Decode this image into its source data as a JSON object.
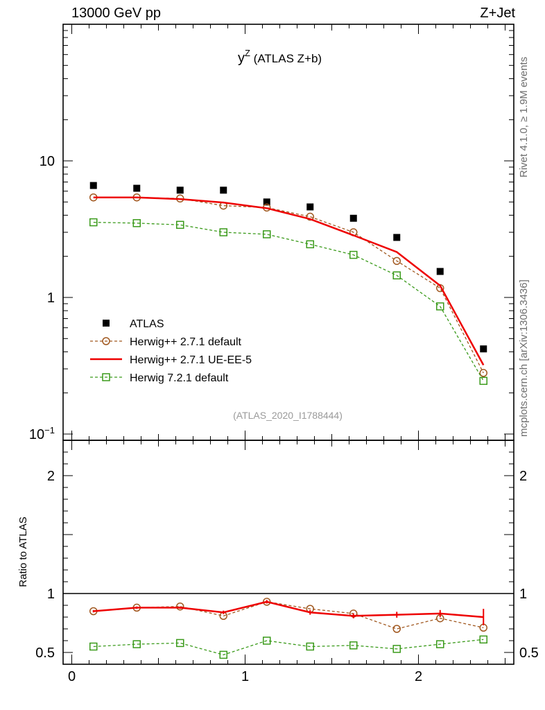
{
  "header": {
    "left": "13000 GeV pp",
    "right": "Z+Jet"
  },
  "side_labels": {
    "rivet": "Rivet 4.1.0, ≥ 1.9M events",
    "mcplots": "mcplots.cern.ch [arXiv:1306.3436]"
  },
  "colors": {
    "atlas": "#000000",
    "herwigpp_default": "#a0571e",
    "herwigpp_ueee5": "#ee0000",
    "herwig7": "#3a9a1a"
  },
  "chart_data": [
    {
      "type": "scatter",
      "title_main": "y",
      "title_sup": "Z",
      "title_sub": " (ATLAS Z+b)",
      "watermark": "(ATLAS_2020_I1788444)",
      "yscale": "log",
      "ylim": [
        0.09,
        100
      ],
      "xlim": [
        -0.05,
        2.55
      ],
      "y_tick_labels": [
        {
          "value": 10,
          "label": "10"
        },
        {
          "value": 1,
          "label": "1"
        },
        {
          "value": 0.1,
          "base": "10",
          "exp": "−1"
        }
      ],
      "legend_position": "lower-left",
      "x": [
        0.125,
        0.375,
        0.625,
        0.875,
        1.125,
        1.375,
        1.625,
        1.875,
        2.125,
        2.375
      ],
      "series": [
        {
          "name": "ATLAS",
          "style": "marker",
          "color": "#000000",
          "values": [
            6.6,
            6.3,
            6.1,
            6.1,
            5.0,
            4.6,
            3.8,
            2.75,
            1.55,
            0.42
          ]
        },
        {
          "name": "Herwig++ 2.7.1 default",
          "style": "dashed-circle",
          "color": "#a0571e",
          "values": [
            5.4,
            5.4,
            5.3,
            4.7,
            4.55,
            3.9,
            3.0,
            1.85,
            1.17,
            0.28
          ]
        },
        {
          "name": "Herwig++ 2.7.1 UE-EE-5",
          "style": "solid",
          "color": "#ee0000",
          "values": [
            5.4,
            5.4,
            5.25,
            4.95,
            4.5,
            3.75,
            2.85,
            2.15,
            1.22,
            0.32
          ]
        },
        {
          "name": "Herwig 7.2.1 default",
          "style": "dashed-square",
          "color": "#3a9a1a",
          "values": [
            3.55,
            3.5,
            3.4,
            3.0,
            2.9,
            2.45,
            2.05,
            1.45,
            0.86,
            0.245
          ]
        }
      ]
    },
    {
      "type": "line",
      "ylabel": "Ratio to ATLAS",
      "ylim": [
        0.4,
        2.3
      ],
      "reference": 1,
      "y_tick_labels": [
        {
          "value": 2,
          "label": "2"
        },
        {
          "value": 1,
          "label": "1"
        },
        {
          "value": 0.5,
          "label": "0.5"
        }
      ],
      "xlim": [
        -0.05,
        2.55
      ],
      "x_tick_labels": [
        {
          "value": 0,
          "label": "0"
        },
        {
          "value": 1,
          "label": "1"
        },
        {
          "value": 2,
          "label": "2"
        }
      ],
      "x": [
        0.125,
        0.375,
        0.625,
        0.875,
        1.125,
        1.375,
        1.625,
        1.875,
        2.125,
        2.375
      ],
      "series": [
        {
          "name": "Herwig++ 2.7.1 default",
          "style": "dashed-circle",
          "color": "#a0571e",
          "values": [
            0.85,
            0.88,
            0.89,
            0.81,
            0.93,
            0.87,
            0.83,
            0.7,
            0.79,
            0.71
          ]
        },
        {
          "name": "Herwig++ 2.7.1 UE-EE-5",
          "style": "solid",
          "color": "#ee0000",
          "values": [
            0.85,
            0.88,
            0.88,
            0.84,
            0.93,
            0.84,
            0.81,
            0.82,
            0.83,
            0.8
          ],
          "errors": [
            0.01,
            0.01,
            0.01,
            0.015,
            0.015,
            0.02,
            0.02,
            0.025,
            0.03,
            0.07
          ]
        },
        {
          "name": "Herwig 7.2.1 default",
          "style": "dashed-square",
          "color": "#3a9a1a",
          "values": [
            0.55,
            0.57,
            0.58,
            0.48,
            0.6,
            0.55,
            0.56,
            0.53,
            0.57,
            0.61
          ]
        }
      ]
    }
  ]
}
